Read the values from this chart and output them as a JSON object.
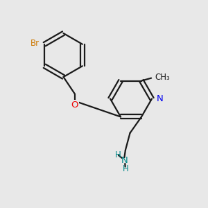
{
  "background_color": "#e8e8e8",
  "bond_color": "#1a1a1a",
  "nitrogen_color": "#0000ee",
  "oxygen_color": "#ee0000",
  "bromine_color": "#cc7700",
  "nh_color": "#008888",
  "figsize": [
    3.0,
    3.0
  ],
  "dpi": 100,
  "xlim": [
    0,
    10
  ],
  "ylim": [
    0,
    10
  ]
}
